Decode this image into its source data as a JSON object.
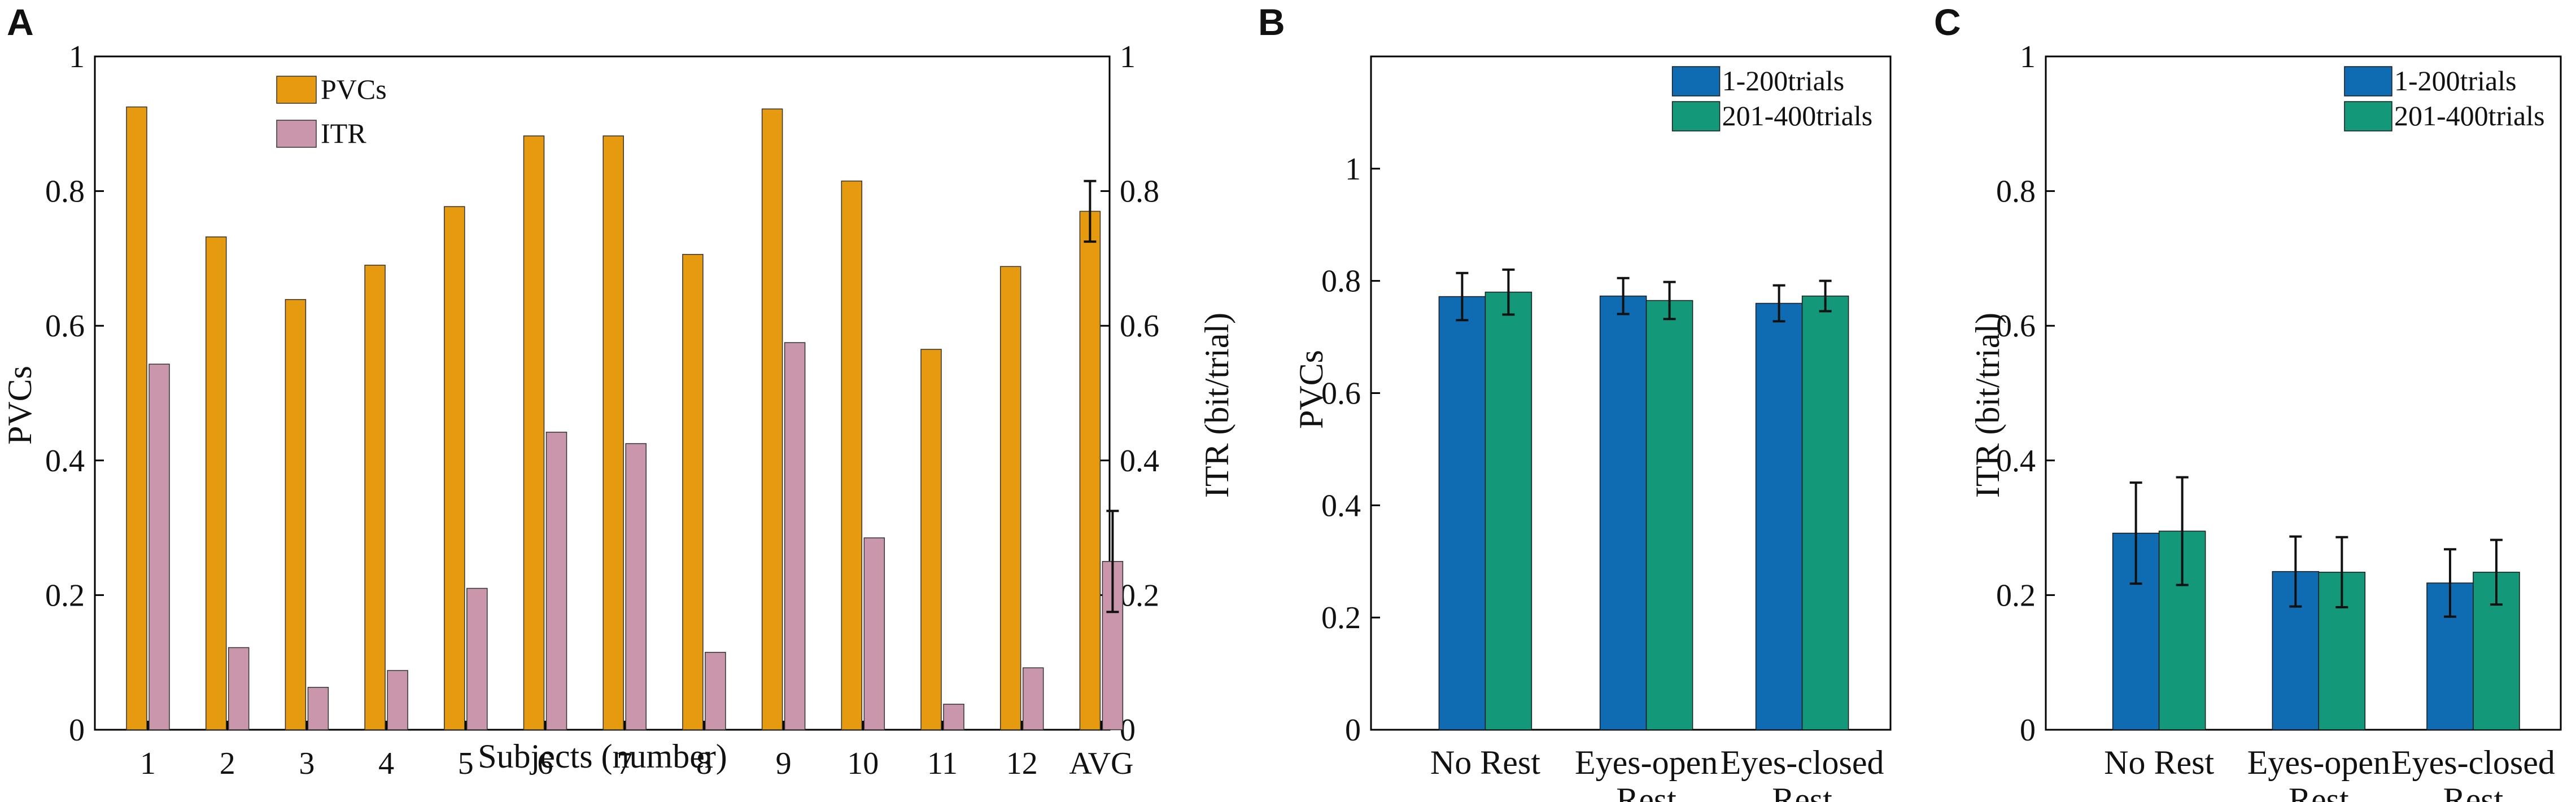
{
  "colors": {
    "pvcs": "#e69a10",
    "itr": "#c996ac",
    "blue": "#0f6cb3",
    "green": "#14987a",
    "axis": "#000000",
    "error": "#111111"
  },
  "chart_data": [
    {
      "panel": "A",
      "type": "bar",
      "categories": [
        "1",
        "2",
        "3",
        "4",
        "5",
        "6",
        "7",
        "8",
        "9",
        "10",
        "11",
        "12",
        "AVG"
      ],
      "series": [
        {
          "name": "PVCs",
          "axis": "left",
          "values": [
            0.925,
            0.732,
            0.639,
            0.69,
            0.777,
            0.882,
            0.882,
            0.706,
            0.922,
            0.815,
            0.565,
            0.688,
            0.77
          ],
          "error": [
            null,
            null,
            null,
            null,
            null,
            null,
            null,
            null,
            null,
            null,
            null,
            null,
            0.045
          ]
        },
        {
          "name": "ITR",
          "axis": "right",
          "values": [
            0.543,
            0.122,
            0.063,
            0.088,
            0.21,
            0.442,
            0.425,
            0.115,
            0.575,
            0.285,
            0.038,
            0.092,
            0.25
          ],
          "error": [
            null,
            null,
            null,
            null,
            null,
            null,
            null,
            null,
            null,
            null,
            null,
            null,
            0.075
          ]
        }
      ],
      "xlabel": "Subjects (number)",
      "ylabel": "PVCs",
      "ylabel_right": "ITR (bit/trial)",
      "ylim": [
        0,
        1
      ],
      "yticks": [
        "0",
        "0.2",
        "0.4",
        "0.6",
        "0.8",
        "1"
      ],
      "legend": [
        "PVCs",
        "ITR"
      ],
      "legend_position": "top-left"
    },
    {
      "panel": "B",
      "type": "bar",
      "categories": [
        "No Rest",
        "Eyes-open Rest",
        "Eyes-closed Rest"
      ],
      "category_lines": [
        [
          "No Rest"
        ],
        [
          "Eyes-open",
          "Rest"
        ],
        [
          "Eyes-closed",
          "Rest"
        ]
      ],
      "series": [
        {
          "name": "1-200trials",
          "values": [
            0.772,
            0.773,
            0.76
          ],
          "error": [
            0.042,
            0.032,
            0.032
          ]
        },
        {
          "name": "201-400trials",
          "values": [
            0.78,
            0.765,
            0.773
          ],
          "error": [
            0.04,
            0.033,
            0.027
          ]
        }
      ],
      "xlabel": "",
      "ylabel": "PVCs",
      "ylim": [
        0,
        1.2
      ],
      "yticks": [
        "0",
        "0.2",
        "0.4",
        "0.6",
        "0.8",
        "1"
      ],
      "legend": [
        "1-200trials",
        "201-400trials"
      ],
      "legend_position": "top-right"
    },
    {
      "panel": "C",
      "type": "bar",
      "categories": [
        "No Rest",
        "Eyes-open Rest",
        "Eyes-closed Rest"
      ],
      "category_lines": [
        [
          "No Rest"
        ],
        [
          "Eyes-open",
          "Rest"
        ],
        [
          "Eyes-closed",
          "Rest"
        ]
      ],
      "series": [
        {
          "name": "1-200trials",
          "values": [
            0.292,
            0.235,
            0.218
          ],
          "error": [
            0.075,
            0.052,
            0.05
          ]
        },
        {
          "name": "201-400trials",
          "values": [
            0.295,
            0.234,
            0.234
          ],
          "error": [
            0.08,
            0.052,
            0.048
          ]
        }
      ],
      "xlabel": "",
      "ylabel": "ITR (bit/trial)",
      "ylim": [
        0,
        1
      ],
      "yticks": [
        "0",
        "0.2",
        "0.4",
        "0.6",
        "0.8",
        "1"
      ],
      "legend": [
        "1-200trials",
        "201-400trials"
      ],
      "legend_position": "top-right"
    }
  ]
}
